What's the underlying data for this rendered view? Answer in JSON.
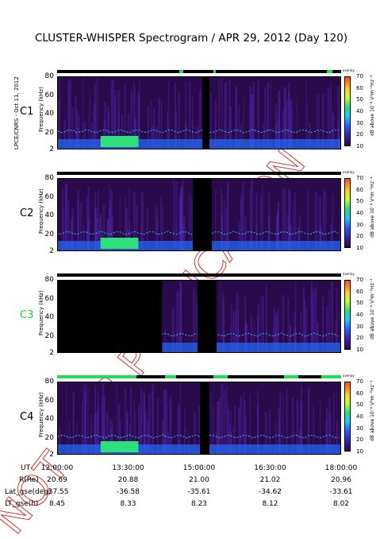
{
  "title": "CLUSTER-WHISPER Spectrogram / APR 29, 2012 (Day 120)",
  "side_label": "LPCE/CNRS - Oct 11, 2012",
  "stamp_text": "NOT FOR PUBLICATION",
  "overlay_label": "overlay",
  "colorbar_label": "dB above 10⁻⁸ V²m⁻²Hz⁻¹",
  "colorbar_ticks": [
    "70",
    "60",
    "50",
    "40",
    "30",
    "20",
    "10"
  ],
  "ylabel": "Frequency (kHz)",
  "yticks": [
    "80",
    "60",
    "40",
    "20",
    "2"
  ],
  "colors": {
    "strip_ok": "#22dd55",
    "background": "#2a0a4a",
    "band": "#2ee07a",
    "line": "#19c8ff"
  },
  "x_ticks": [
    "12:00:00",
    "13:30:00",
    "15:00:00",
    "16:30:00",
    "18:00:00"
  ],
  "ephemeris": {
    "rows": [
      {
        "label": "UT",
        "values": [
          "12:00:00",
          "13:30:00",
          "15:00:00",
          "16:30:00",
          "18:00:00"
        ]
      },
      {
        "label": "R(Re)",
        "values": [
          "20.69",
          "20.88",
          "21.00",
          "21.02",
          "20.96"
        ]
      },
      {
        "label": "Lat_gse(deg)",
        "values": [
          "-37.55",
          "-36.58",
          "-35.61",
          "-34.62",
          "-33.61"
        ]
      },
      {
        "label": "LT_gse(h)",
        "values": [
          "8.45",
          "8.33",
          "8.23",
          "8.12",
          "8.02"
        ]
      }
    ]
  },
  "chart_data": [
    {
      "type": "heatmap",
      "satellite": "C1",
      "label_color": "#000000",
      "x_range": [
        "12:00:00",
        "18:00:00"
      ],
      "y_range_khz": [
        2,
        80
      ],
      "colorbar_db": [
        10,
        70
      ],
      "data_gap_hours": [
        [
          15.05,
          15.2
        ]
      ],
      "no_data_before_hour": null
    },
    {
      "type": "heatmap",
      "satellite": "C2",
      "label_color": "#000000",
      "x_range": [
        "12:00:00",
        "18:00:00"
      ],
      "y_range_khz": [
        2,
        80
      ],
      "colorbar_db": [
        10,
        70
      ],
      "data_gap_hours": [
        [
          14.85,
          15.25
        ]
      ],
      "no_data_before_hour": null
    },
    {
      "type": "heatmap",
      "satellite": "C3",
      "label_color": "#22cc44",
      "x_range": [
        "12:00:00",
        "18:00:00"
      ],
      "y_range_khz": [
        2,
        80
      ],
      "colorbar_db": [
        10,
        70
      ],
      "data_gap_hours": [
        [
          14.95,
          15.35
        ]
      ],
      "no_data_before_hour": 14.2
    },
    {
      "type": "heatmap",
      "satellite": "C4",
      "label_color": "#000000",
      "x_range": [
        "12:00:00",
        "18:00:00"
      ],
      "y_range_khz": [
        2,
        80
      ],
      "colorbar_db": [
        10,
        70
      ],
      "data_gap_hours": [
        [
          15.0,
          15.2
        ]
      ],
      "no_data_before_hour": null
    }
  ]
}
